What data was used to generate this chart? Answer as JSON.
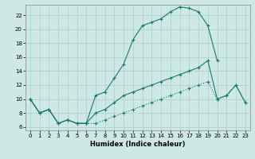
{
  "xlabel": "Humidex (Indice chaleur)",
  "bg_color": "#cde8e5",
  "grid_color": "#b0d4d0",
  "line_color": "#1a7a6a",
  "xlim": [
    -0.5,
    23.5
  ],
  "ylim": [
    5.5,
    23.5
  ],
  "xticks": [
    0,
    1,
    2,
    3,
    4,
    5,
    6,
    7,
    8,
    9,
    10,
    11,
    12,
    13,
    14,
    15,
    16,
    17,
    18,
    19,
    20,
    21,
    22,
    23
  ],
  "yticks": [
    6,
    8,
    10,
    12,
    14,
    16,
    18,
    20,
    22
  ],
  "series": [
    {
      "x": [
        0,
        1,
        2,
        3,
        4,
        5,
        6,
        7,
        8,
        9,
        10,
        11,
        12,
        13,
        14,
        15,
        16,
        17,
        18,
        19,
        20
      ],
      "y": [
        10,
        8,
        8.5,
        6.5,
        7,
        6.5,
        6.5,
        10.5,
        11,
        13,
        15,
        18.5,
        20.5,
        21,
        21.5,
        22.5,
        23.2,
        23.0,
        22.5,
        20.5,
        15.5
      ],
      "style": "solid"
    },
    {
      "x": [
        0,
        1,
        2,
        3,
        4,
        5,
        6,
        7,
        8,
        9,
        10,
        11,
        12,
        13,
        14,
        15,
        16,
        17,
        18,
        19,
        20,
        21,
        22,
        23
      ],
      "y": [
        10,
        8,
        8.5,
        6.5,
        7,
        6.5,
        6.5,
        8,
        8.5,
        9.5,
        10.5,
        11,
        11.5,
        12,
        12.5,
        13,
        13.5,
        14,
        14.5,
        15.5,
        10,
        10.5,
        12,
        9.5
      ],
      "style": "solid"
    },
    {
      "x": [
        0,
        1,
        2,
        3,
        4,
        5,
        6,
        7,
        8,
        9,
        10,
        11,
        12,
        13,
        14,
        15,
        16,
        17,
        18,
        19,
        20,
        21,
        22,
        23
      ],
      "y": [
        10,
        8,
        8.5,
        6.5,
        7,
        6.5,
        6.5,
        6.5,
        7,
        7.5,
        8,
        8.5,
        9,
        9.5,
        10,
        10.5,
        11,
        11.5,
        12,
        12.5,
        10,
        10.5,
        12,
        9.5
      ],
      "style": "dotted"
    }
  ]
}
